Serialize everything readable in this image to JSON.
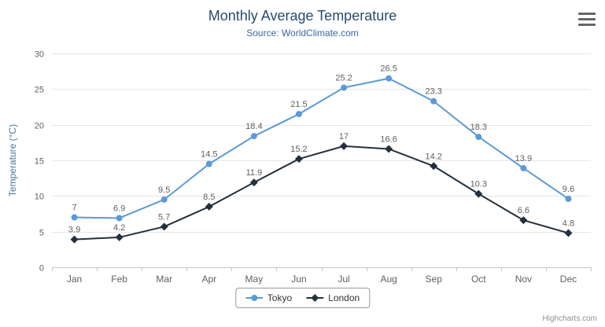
{
  "chart_data": {
    "type": "line",
    "title": "Monthly Average Temperature",
    "subtitle": "Source: WorldClimate.com",
    "xlabel": "",
    "ylabel": "Temperature (°C)",
    "categories": [
      "Jan",
      "Feb",
      "Mar",
      "Apr",
      "May",
      "Jun",
      "Jul",
      "Aug",
      "Sep",
      "Oct",
      "Nov",
      "Dec"
    ],
    "series": [
      {
        "name": "Tokyo",
        "color": "#5b9bd5",
        "marker": "circle",
        "values": [
          7,
          6.9,
          9.5,
          14.5,
          18.4,
          21.5,
          25.2,
          26.5,
          23.3,
          18.3,
          13.9,
          9.6
        ]
      },
      {
        "name": "London",
        "color": "#24303c",
        "marker": "diamond",
        "values": [
          3.9,
          4.2,
          5.7,
          8.5,
          11.9,
          15.2,
          17,
          16.6,
          14.2,
          10.3,
          6.6,
          4.8
        ]
      }
    ],
    "ylim": [
      0,
      30
    ],
    "ytick_interval": 5,
    "grid": true,
    "legend_position": "bottom"
  },
  "credits": {
    "label": "Highcharts.com"
  },
  "colors": {
    "title": "#274b6d",
    "subtitle": "#3a66a7",
    "axis_title": "#4d759e",
    "tick_labels": "#606060",
    "data_labels": "#606060",
    "gridline": "#e6e6e6",
    "axis_line": "#c0c8d0",
    "legend_border": "#999999",
    "credits": "#909090"
  }
}
